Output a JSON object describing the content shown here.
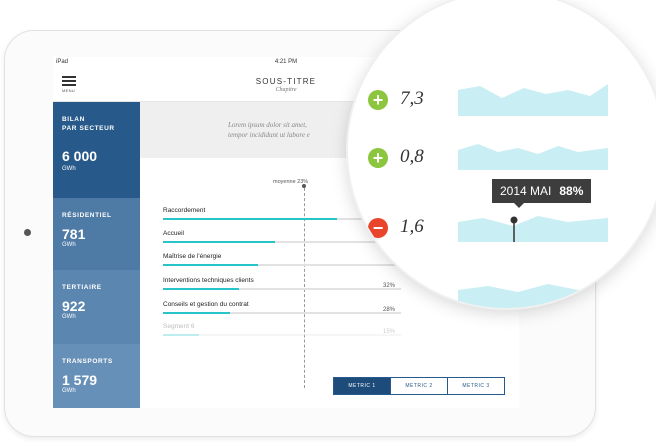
{
  "status": {
    "device": "iPad",
    "time": "4:21 PM"
  },
  "header": {
    "menu_label": "MENU",
    "title": "SOUS-TITRE",
    "subtitle": "Chapitre"
  },
  "sidebar": {
    "items": [
      {
        "name_line1": "BILAN",
        "name_line2": "PAR SECTEUR",
        "value": "6 000",
        "unit": "GWh",
        "color": "#27598a"
      },
      {
        "name_line1": "RÉSIDENTIEL",
        "name_line2": "",
        "value": "781",
        "unit": "GWh",
        "color": "#4e7aa6"
      },
      {
        "name_line1": "TERTIAIRE",
        "name_line2": "",
        "value": "922",
        "unit": "GWh",
        "color": "#5b86b0"
      },
      {
        "name_line1": "TRANSPORTS",
        "name_line2": "",
        "value": "1 579",
        "unit": "GWh",
        "color": "#6790b8"
      }
    ]
  },
  "intro": {
    "line1": "Lorem ipsum dolor sit amet,",
    "line2": "tempor incididunt ut labore e"
  },
  "average": {
    "label": "moyenne 23%",
    "value": 23
  },
  "segments": [
    {
      "label": "Raccordement",
      "percent": 73,
      "pct_label": ""
    },
    {
      "label": "Accueil",
      "percent": 47,
      "pct_label": ""
    },
    {
      "label": "Maîtrise de l'énergie",
      "percent": 40,
      "pct_label": ""
    },
    {
      "label": "Interventions techniques clients",
      "percent": 32,
      "pct_label": "32%"
    },
    {
      "label": "Conseils et gestion du contrat",
      "percent": 28,
      "pct_label": "28%"
    },
    {
      "label": "Segment 6",
      "percent": 15,
      "pct_label": "15%"
    }
  ],
  "tabs": [
    {
      "label": "METRIC 1",
      "active": true
    },
    {
      "label": "METRIC 2",
      "active": false
    },
    {
      "label": "METRIC 3",
      "active": false
    }
  ],
  "magnifier": {
    "rows": [
      {
        "sign": "+",
        "value": "7,3",
        "color": "#8cc63f"
      },
      {
        "sign": "+",
        "value": "0,8",
        "color": "#8cc63f"
      },
      {
        "sign": "−",
        "value": "1,6",
        "color": "#e8452c"
      }
    ],
    "tooltip": {
      "date": "2014 MAI",
      "value": "88%"
    }
  },
  "colors": {
    "accent": "#27c4c9",
    "primary": "#27598a",
    "positive": "#8cc63f",
    "negative": "#e8452c",
    "spark": "#c9eef4"
  }
}
